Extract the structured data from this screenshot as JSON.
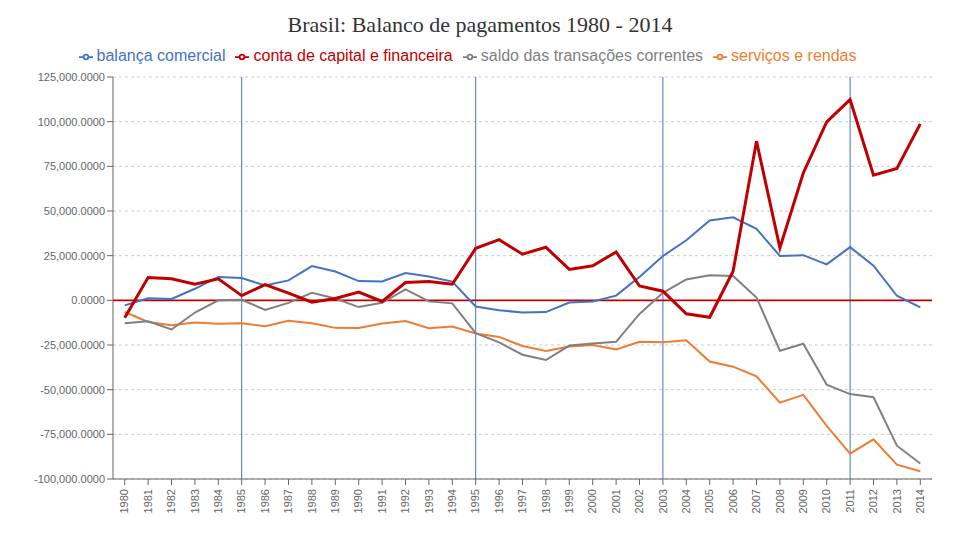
{
  "chart_data": {
    "type": "line",
    "title": "Brasil: Balanco de pagamentos  1980 - 2014",
    "x": [
      1980,
      1981,
      1982,
      1983,
      1984,
      1985,
      1986,
      1987,
      1988,
      1989,
      1990,
      1991,
      1992,
      1993,
      1994,
      1995,
      1996,
      1997,
      1998,
      1999,
      2000,
      2001,
      2002,
      2003,
      2004,
      2005,
      2006,
      2007,
      2008,
      2009,
      2010,
      2011,
      2012,
      2013,
      2014
    ],
    "series": [
      {
        "name": "balança comercial",
        "color": "#4472C4",
        "values": [
          -2823,
          1202,
          781,
          6470,
          13090,
          12486,
          8304,
          11172,
          19184,
          16119,
          10752,
          10580,
          15239,
          13307,
          10466,
          -3466,
          -5599,
          -6753,
          -6575,
          -1259,
          -698,
          2642,
          13121,
          24794,
          33641,
          44703,
          46457,
          40032,
          24836,
          25290,
          20147,
          29793,
          19395,
          2556,
          -3930
        ]
      },
      {
        "name": "serviços e rendas",
        "color": "#ED7D31",
        "values": [
          -6508,
          -12119,
          -13891,
          -12432,
          -13061,
          -12764,
          -14482,
          -11470,
          -12823,
          -15413,
          -15431,
          -13020,
          -11540,
          -15633,
          -14692,
          -18541,
          -20482,
          -25522,
          -28299,
          -25825,
          -25048,
          -27503,
          -23148,
          -23483,
          -22322,
          -34276,
          -37120,
          -42510,
          -57252,
          -52930,
          -70322,
          -85829,
          -77799,
          -91969,
          -95673
        ]
      },
      {
        "name": "saldo das transações correntes",
        "color": "#808080",
        "values": [
          -12807,
          -11734,
          -16311,
          -6837,
          46,
          284,
          -5323,
          -1450,
          4175,
          1033,
          -3782,
          -1407,
          6143,
          -592,
          -1689,
          -18384,
          -23502,
          -30452,
          -33416,
          -25335,
          -24225,
          -23215,
          -7637,
          4177,
          11679,
          13985,
          13643,
          1551,
          -28192,
          -24302,
          -47273,
          -52473,
          -54228,
          -81373,
          -91286
        ]
      },
      {
        "name": "conta de capital e financeira",
        "color": "#C00000",
        "values": [
          -9686,
          12784,
          12078,
          8993,
          12050,
          2645,
          8790,
          3996,
          -1025,
          1049,
          4592,
          -617,
          9947,
          10491,
          9015,
          29095,
          33968,
          25800,
          29702,
          17319,
          19326,
          27052,
          8004,
          5111,
          -7523,
          -9464,
          16299,
          89086,
          29352,
          71301,
          99912,
          112383,
          70000,
          73800,
          98786
        ]
      }
    ],
    "xlim": [
      1979.5,
      2014.5
    ],
    "xticks": [
      1980,
      1981,
      1982,
      1983,
      1984,
      1985,
      1986,
      1987,
      1988,
      1989,
      1990,
      1991,
      1992,
      1993,
      1994,
      1995,
      1996,
      1997,
      1998,
      1999,
      2000,
      2001,
      2002,
      2003,
      2004,
      2005,
      2006,
      2007,
      2008,
      2009,
      2010,
      2011,
      2012,
      2013,
      2014
    ],
    "ylim": [
      -100000,
      125000
    ],
    "yticks": [
      {
        "value": -100000,
        "label": "-100,000.0000"
      },
      {
        "value": -75000,
        "label": "-75,000.0000"
      },
      {
        "value": -50000,
        "label": "-50,000.0000"
      },
      {
        "value": -25000,
        "label": "-25,000.0000"
      },
      {
        "value": 0,
        "label": "0.0000"
      },
      {
        "value": 25000,
        "label": "25,000.0000"
      },
      {
        "value": 50000,
        "label": "50,000.0000"
      },
      {
        "value": 75000,
        "label": "75,000.0000"
      },
      {
        "value": 100000,
        "label": "100,000.0000"
      },
      {
        "value": 125000,
        "label": "125,000.0000"
      }
    ],
    "vlines": {
      "values": [
        1985,
        1995,
        2003,
        2011
      ],
      "color": "#4472C4"
    },
    "hline": {
      "value": 0,
      "color": "#C00000"
    },
    "grid": "y",
    "legend": "top"
  }
}
